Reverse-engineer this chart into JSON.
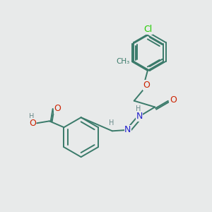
{
  "bg_color": "#e8eaea",
  "atom_colors": {
    "C": "#3a7a6a",
    "O": "#cc2200",
    "N": "#2222cc",
    "Cl": "#22cc00",
    "H": "#6a8a8a"
  },
  "bond_color": "#3a7a6a",
  "font_size": 8,
  "figsize": [
    3.0,
    3.0
  ],
  "dpi": 100
}
